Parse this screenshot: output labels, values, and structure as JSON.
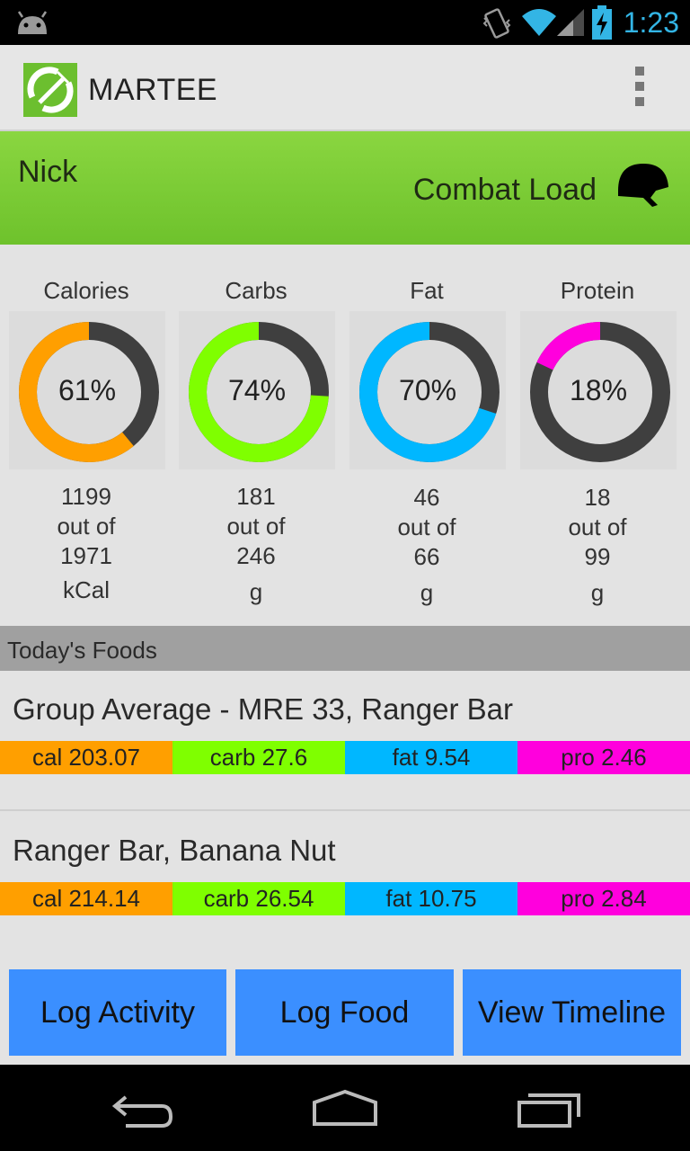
{
  "status_bar": {
    "time": "1:23",
    "icons": [
      "android-icon",
      "vibrate-icon",
      "wifi-icon",
      "signal-icon",
      "battery-icon"
    ],
    "accent_color": "#33b5e5"
  },
  "action_bar": {
    "title": "MARTEE",
    "logo_icon": "fork-and-spoon-logo-icon",
    "overflow_icon": "overflow-menu-icon"
  },
  "profile": {
    "name": "Nick",
    "load": "Combat Load",
    "load_icon": "helmet-icon",
    "band_color": "#7ccb35"
  },
  "metrics": [
    {
      "label": "Calories",
      "percent_text": "61%",
      "fraction": 0.61,
      "value": "1199",
      "out_of": "out of",
      "target": "1971",
      "unit": "kCal",
      "color": "#ff9f00"
    },
    {
      "label": "Carbs",
      "percent_text": "74%",
      "fraction": 0.74,
      "value": "181",
      "out_of": "out of",
      "target": "246",
      "unit": "g",
      "color": "#7fff00"
    },
    {
      "label": "Fat",
      "percent_text": "70%",
      "fraction": 0.7,
      "value": "46",
      "out_of": "out of",
      "target": "66",
      "unit": "g",
      "color": "#00b7ff"
    },
    {
      "label": "Protein",
      "percent_text": "18%",
      "fraction": 0.18,
      "value": "18",
      "out_of": "out of",
      "target": "99",
      "unit": "g",
      "color": "#ff00dd"
    }
  ],
  "foods_section": {
    "title": "Today's Foods",
    "items": [
      {
        "name": "Group Average - MRE 33, Ranger Bar",
        "cal": "cal 203.07",
        "carb": "carb 27.6",
        "fat": "fat 9.54",
        "pro": "pro 2.46"
      },
      {
        "name": "Ranger Bar, Banana Nut",
        "cal": "cal 214.14",
        "carb": "carb 26.54",
        "fat": "fat 10.75",
        "pro": "pro 2.84"
      }
    ]
  },
  "buttons": {
    "log_activity": "Log Activity",
    "log_food": "Log Food",
    "view_timeline": "View Timeline",
    "color": "#3b8fff"
  },
  "nav_bar": {
    "icons": [
      "back-icon",
      "home-icon",
      "recent-apps-icon"
    ]
  }
}
